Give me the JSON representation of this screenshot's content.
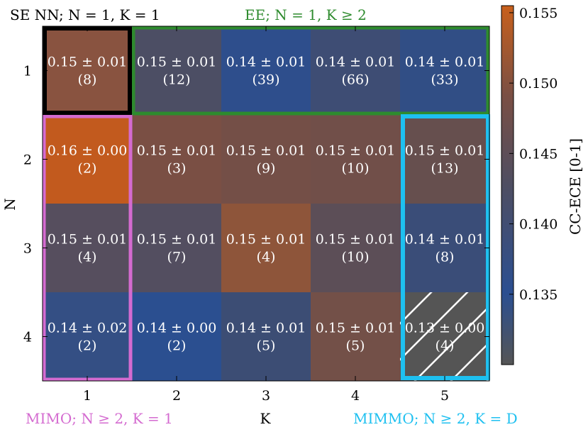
{
  "chart_data": {
    "type": "heatmap",
    "xlabel": "K",
    "ylabel": "N",
    "x_categories": [
      "1",
      "2",
      "3",
      "4",
      "5"
    ],
    "y_categories": [
      "1",
      "2",
      "3",
      "4"
    ],
    "cells": [
      [
        {
          "mean": 0.15,
          "label": "0.15 ± 0.01",
          "count": "(8)",
          "color": "#895340"
        },
        {
          "mean": 0.145,
          "label": "0.15 ± 0.01",
          "count": "(12)",
          "color": "#4c4e64"
        },
        {
          "mean": 0.138,
          "label": "0.14 ± 0.01",
          "count": "(39)",
          "color": "#2e4e8c"
        },
        {
          "mean": 0.142,
          "label": "0.14 ± 0.01",
          "count": "(66)",
          "color": "#3e4d74"
        },
        {
          "mean": 0.139,
          "label": "0.14 ± 0.01",
          "count": "(33)",
          "color": "#314e85"
        }
      ],
      [
        {
          "mean": 0.155,
          "label": "0.16 ± 0.00",
          "count": "(2)",
          "color": "#c25a1e"
        },
        {
          "mean": 0.149,
          "label": "0.15 ± 0.01",
          "count": "(3)",
          "color": "#7a4f44"
        },
        {
          "mean": 0.148,
          "label": "0.15 ± 0.01",
          "count": "(9)",
          "color": "#744f47"
        },
        {
          "mean": 0.148,
          "label": "0.15 ± 0.01",
          "count": "(10)",
          "color": "#714f49"
        },
        {
          "mean": 0.147,
          "label": "0.15 ± 0.01",
          "count": "(13)",
          "color": "#664f4e"
        }
      ],
      [
        {
          "mean": 0.145,
          "label": "0.15 ± 0.01",
          "count": "(4)",
          "color": "#564e5e"
        },
        {
          "mean": 0.145,
          "label": "0.15 ± 0.01",
          "count": "(7)",
          "color": "#534e60"
        },
        {
          "mean": 0.151,
          "label": "0.15 ± 0.01",
          "count": "(4)",
          "color": "#8e553a"
        },
        {
          "mean": 0.146,
          "label": "0.15 ± 0.01",
          "count": "(10)",
          "color": "#5c4e57"
        },
        {
          "mean": 0.141,
          "label": "0.14 ± 0.01",
          "count": "(8)",
          "color": "#3a4d78"
        }
      ],
      [
        {
          "mean": 0.139,
          "label": "0.14 ± 0.02",
          "count": "(2)",
          "color": "#344f84"
        },
        {
          "mean": 0.137,
          "label": "0.14 ± 0.00",
          "count": "(2)",
          "color": "#2b4f90"
        },
        {
          "mean": 0.141,
          "label": "0.14 ± 0.01",
          "count": "(5)",
          "color": "#3c4d74"
        },
        {
          "mean": 0.148,
          "label": "0.15 ± 0.01",
          "count": "(5)",
          "color": "#735048"
        },
        {
          "mean": 0.13,
          "label": "0.13 ± 0.00",
          "count": "(4)",
          "color": "#555555",
          "hatched": true
        }
      ]
    ],
    "colorbar": {
      "label": "CC-ECE [0-1]",
      "range": [
        0.13,
        0.1555
      ],
      "ticks": [
        "0.135",
        "0.140",
        "0.145",
        "0.150",
        "0.155"
      ],
      "tick_values": [
        0.135,
        0.14,
        0.145,
        0.15,
        0.155
      ],
      "colormap": [
        "#555555",
        "#2b4f91",
        "#4e4e62",
        "#7a4f44",
        "#c8601c"
      ]
    },
    "regions": [
      {
        "name": "se-nn",
        "text": "SE NN; N = 1, K = 1",
        "color": "#000000"
      },
      {
        "name": "ee",
        "text": "EE; N = 1, K ≥ 2",
        "color": "#2e8b2e"
      },
      {
        "name": "mimo",
        "text": "MIMO; N ≥ 2, K = 1",
        "color": "#d46bd0"
      },
      {
        "name": "mimmo",
        "text": "MIMMO; N ≥ 2, K = D",
        "color": "#1ec0f0"
      }
    ]
  }
}
